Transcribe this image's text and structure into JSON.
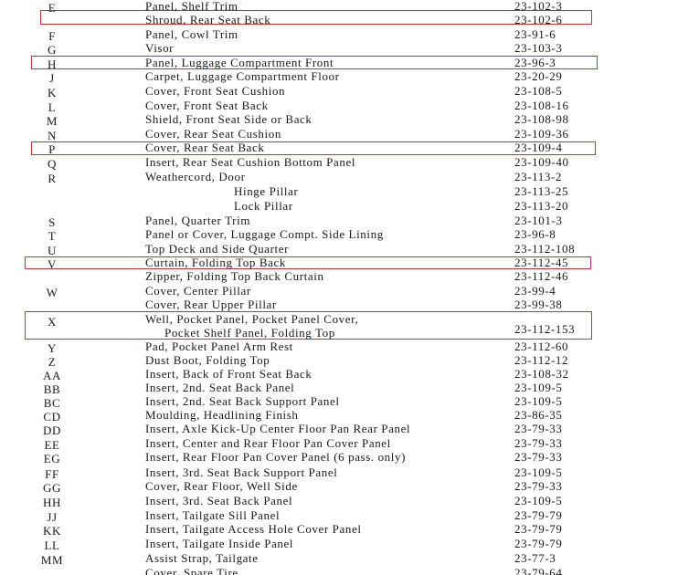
{
  "rows": [
    {
      "key": "E",
      "lines": [
        "Panel,  Shelf  Trim"
      ],
      "part": "23-102-3"
    },
    {
      "lines": [
        "Shroud,  Rear  Seat  Back"
      ],
      "part": "23-102-6",
      "highlighted": true
    },
    {
      "key": "F",
      "lines": [
        "Panel,  Cowl  Trim"
      ],
      "part": "23-91-6"
    },
    {
      "key": "G",
      "lines": [
        "Visor"
      ],
      "part": "23-103-3"
    },
    {
      "key": "H",
      "lines": [
        "Panel,  Luggage  Compartment  Front"
      ],
      "part": "23-96-3",
      "highlighted": true
    },
    {
      "key": "J",
      "lines": [
        "Carpet,  Luggage  Compartment  Floor"
      ],
      "part": "23-20-29"
    },
    {
      "key": "K",
      "lines": [
        "Cover,  Front  Seat  Cushion"
      ],
      "part": "23-108-5"
    },
    {
      "key": "L",
      "lines": [
        "Cover,  Front  Seat  Back"
      ],
      "part": "23-108-16"
    },
    {
      "key": "M",
      "lines": [
        "Shield,  Front  Seat  Side  or  Back"
      ],
      "part": "23-108-98"
    },
    {
      "key": "N",
      "lines": [
        "Cover,  Rear  Seat  Cushion"
      ],
      "part": "23-109-36"
    },
    {
      "key": "P",
      "lines": [
        "Cover,  Rear  Seat  Back"
      ],
      "part": "23-109-4",
      "highlighted": true
    },
    {
      "key": "Q",
      "lines": [
        "Insert,  Rear  Seat  Cushion  Bottom  Panel"
      ],
      "part": "23-109-40"
    },
    {
      "key": "R",
      "lines": [
        "Weathercord,  Door"
      ],
      "part": "23-113-2"
    },
    {
      "lines": [
        "Hinge  Pillar"
      ],
      "part": "23-113-25"
    },
    {
      "lines": [
        "Lock  Pillar"
      ],
      "part": "23-113-20"
    },
    {
      "key": "S",
      "lines": [
        "Panel,  Quarter  Trim"
      ],
      "part": "23-101-3"
    },
    {
      "key": "T",
      "lines": [
        "Panel  or  Cover,  Luggage  Compt.  Side  Lining"
      ],
      "part": "23-96-8"
    },
    {
      "key": "U",
      "lines": [
        "Top  Deck  and  Side  Quarter"
      ],
      "part": "23-112-108"
    },
    {
      "key": "V",
      "lines": [
        "Curtain,  Folding  Top  Back"
      ],
      "part": "23-112-45",
      "highlighted": true
    },
    {
      "lines": [
        "Zipper,  Folding  Top  Back  Curtain"
      ],
      "part": "23-112-46"
    },
    {
      "key": "W",
      "lines": [
        "Cover,  Center  Pillar"
      ],
      "part": "23-99-4"
    },
    {
      "lines": [
        "Cover,  Rear  Upper  Pillar"
      ],
      "part": "23-99-38"
    },
    {
      "key": "X",
      "lines": [
        "Well,  Pocket  Panel,  Pocket  Panel  Cover,",
        "Pocket  Shelf  Panel,  Folding  Top"
      ],
      "part": "23-112-153",
      "highlighted": true
    },
    {
      "key": "Y",
      "lines": [
        "Pad,  Pocket  Panel  Arm  Rest"
      ],
      "part": "23-112-60"
    },
    {
      "key": "Z",
      "lines": [
        "Dust  Boot,  Folding  Top"
      ],
      "part": "23-112-12"
    },
    {
      "key": "AA",
      "lines": [
        "Insert,  Back  of  Front  Seat  Back"
      ],
      "part": "23-108-32"
    },
    {
      "key": "BB",
      "lines": [
        "Insert,  2nd.  Seat  Back  Panel"
      ],
      "part": "23-109-5"
    },
    {
      "key": "BC",
      "lines": [
        "Insert,  2nd.  Seat  Back  Support  Panel"
      ],
      "part": "23-109-5"
    },
    {
      "key": "CD",
      "lines": [
        "Moulding,  Headlining  Finish"
      ],
      "part": "23-86-35"
    },
    {
      "key": "DD",
      "lines": [
        "Insert,  Axle  Kick-Up  Center  Floor  Pan  Rear  Panel"
      ],
      "part": "23-79-33"
    },
    {
      "key": "EE",
      "lines": [
        "Insert,  Center  and  Rear  Floor  Pan  Cover  Panel"
      ],
      "part": "23-79-33"
    },
    {
      "key": "EG",
      "lines": [
        "Insert,  Rear  Floor  Pan  Cover  Panel  (6  pass.  only)"
      ],
      "part": "23-79-33"
    },
    {
      "key": "FF",
      "lines": [
        "Insert,  3rd.  Seat  Back  Support  Panel"
      ],
      "part": "23-109-5"
    },
    {
      "key": "GG",
      "lines": [
        "Cover,  Rear  Floor,  Well  Side"
      ],
      "part": "23-79-33"
    },
    {
      "key": "HH",
      "lines": [
        "Insert,  3rd.  Seat  Back  Panel"
      ],
      "part": "23-109-5"
    },
    {
      "key": "JJ",
      "lines": [
        "Insert,  Tailgate  Sill  Panel"
      ],
      "part": "23-79-79"
    },
    {
      "key": "KK",
      "lines": [
        "Insert,  Tailgate  Access  Hole  Cover  Panel"
      ],
      "part": "23-79-79"
    },
    {
      "key": "LL",
      "lines": [
        "Insert,  Tailgate  Inside  Panel"
      ],
      "part": "23-79-79"
    },
    {
      "key": "MM",
      "lines": [
        "Assist  Strap,  Tailgate"
      ],
      "part": "23-77-3"
    },
    {
      "lines": [
        "Cover,  Spare  Tire"
      ],
      "part": "23-79-64"
    }
  ]
}
